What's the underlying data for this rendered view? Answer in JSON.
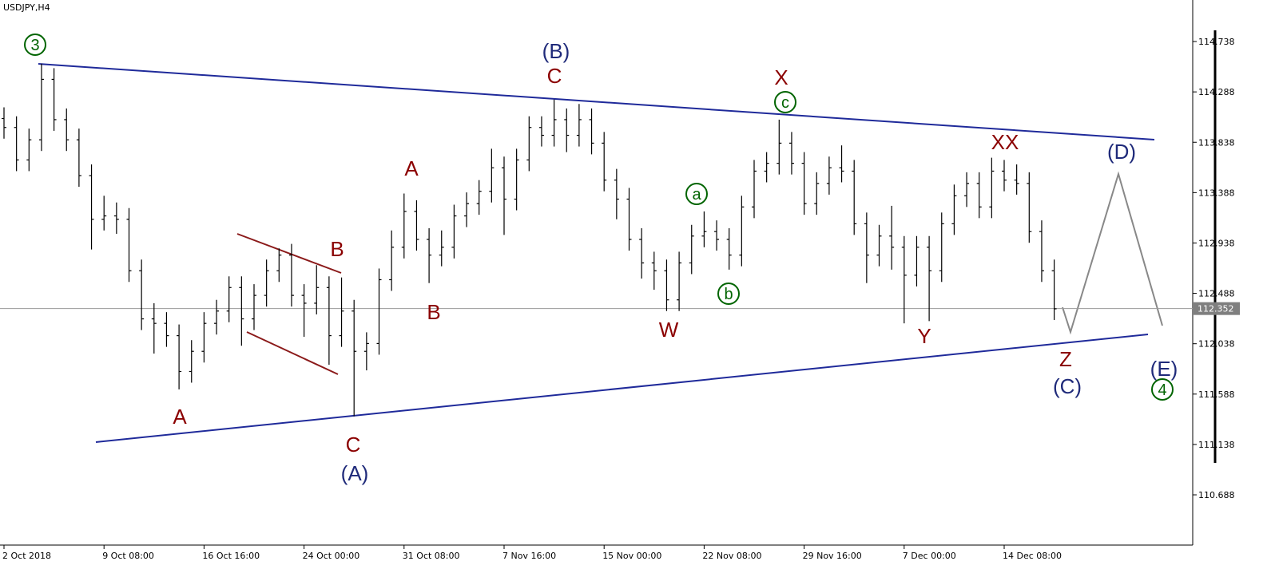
{
  "chart_data": {
    "type": "ohlc",
    "title": "USDJPY,H4",
    "categories": [
      "2 Oct 2018",
      null,
      null,
      null,
      null,
      null,
      null,
      null,
      "9 Oct 08:00",
      null,
      null,
      null,
      null,
      null,
      null,
      null,
      "16 Oct 16:00",
      null,
      null,
      null,
      null,
      null,
      null,
      null,
      "24 Oct 00:00",
      null,
      null,
      null,
      null,
      null,
      null,
      null,
      "31 Oct 08:00",
      null,
      null,
      null,
      null,
      null,
      null,
      null,
      "7 Nov 16:00",
      null,
      null,
      null,
      null,
      null,
      null,
      null,
      "15 Nov 00:00",
      null,
      null,
      null,
      null,
      null,
      null,
      null,
      "22 Nov 08:00",
      null,
      null,
      null,
      null,
      null,
      null,
      null,
      "29 Nov 16:00",
      null,
      null,
      null,
      null,
      null,
      null,
      null,
      "7 Dec 00:00",
      null,
      null,
      null,
      null,
      null,
      null,
      null,
      "14 Dec 08:00",
      null,
      null,
      null,
      null
    ],
    "open": [
      114.05,
      113.97,
      113.68,
      113.86,
      114.4,
      114.04,
      113.86,
      113.54,
      113.15,
      113.18,
      113.15,
      112.69,
      112.26,
      112.22,
      112.11,
      111.79,
      111.97,
      112.22,
      112.33,
      112.54,
      112.26,
      112.47,
      112.69,
      112.83,
      112.47,
      112.4,
      112.54,
      112.11,
      112.33,
      111.97,
      112.04,
      112.61,
      112.9,
      113.22,
      112.97,
      112.83,
      112.9,
      113.18,
      113.29,
      113.4,
      113.61,
      113.33,
      113.68,
      113.97,
      113.9,
      114.04,
      113.9,
      114.04,
      113.83,
      113.5,
      113.33,
      112.97,
      112.76,
      112.69,
      112.43,
      112.76,
      113.0,
      113.04,
      112.97,
      112.83,
      113.26,
      113.58,
      113.65,
      113.83,
      113.65,
      113.29,
      113.47,
      113.61,
      113.58,
      113.11,
      112.83,
      113.0,
      112.9,
      112.65,
      112.9,
      112.69,
      113.11,
      113.36,
      113.47,
      113.26,
      113.58,
      113.5,
      113.47,
      113.04,
      112.69
    ],
    "high": [
      114.15,
      114.07,
      113.96,
      114.54,
      114.5,
      114.14,
      113.96,
      113.64,
      113.36,
      113.3,
      113.25,
      112.79,
      112.4,
      112.32,
      112.21,
      112.07,
      112.32,
      112.43,
      112.64,
      112.64,
      112.57,
      112.79,
      112.89,
      112.93,
      112.57,
      112.74,
      112.64,
      112.63,
      112.43,
      112.14,
      112.71,
      113.05,
      113.38,
      113.32,
      113.07,
      113.05,
      113.28,
      113.39,
      113.5,
      113.78,
      113.71,
      113.78,
      114.07,
      114.07,
      114.22,
      114.14,
      114.18,
      114.14,
      113.93,
      113.6,
      113.43,
      113.07,
      112.86,
      112.79,
      112.86,
      113.1,
      113.22,
      113.14,
      113.07,
      113.36,
      113.68,
      113.75,
      114.04,
      113.93,
      113.75,
      113.57,
      113.71,
      113.81,
      113.68,
      113.21,
      113.1,
      113.27,
      113.0,
      113.0,
      113.0,
      113.21,
      113.46,
      113.57,
      113.57,
      113.7,
      113.68,
      113.64,
      113.57,
      113.14,
      112.79
    ],
    "low": [
      113.87,
      113.58,
      113.58,
      113.76,
      113.94,
      113.76,
      113.44,
      112.88,
      113.05,
      113.02,
      112.59,
      112.16,
      111.95,
      112.01,
      111.63,
      111.69,
      111.87,
      112.12,
      112.23,
      112.02,
      112.16,
      112.37,
      112.59,
      112.37,
      112.1,
      112.3,
      111.85,
      112.01,
      111.39,
      111.8,
      111.94,
      112.51,
      112.8,
      112.87,
      112.58,
      112.73,
      112.8,
      113.08,
      113.19,
      113.3,
      113.01,
      113.23,
      113.58,
      113.8,
      113.8,
      113.75,
      113.8,
      113.73,
      113.4,
      113.15,
      112.87,
      112.62,
      112.52,
      112.33,
      112.33,
      112.66,
      112.9,
      112.87,
      112.7,
      112.73,
      113.16,
      113.48,
      113.55,
      113.55,
      113.19,
      113.19,
      113.37,
      113.48,
      113.01,
      112.58,
      112.73,
      112.7,
      112.22,
      112.55,
      112.24,
      112.59,
      113.01,
      113.26,
      113.16,
      113.16,
      113.4,
      113.37,
      112.94,
      112.59,
      112.25
    ],
    "close": [
      113.97,
      113.68,
      113.86,
      114.4,
      114.04,
      113.86,
      113.54,
      113.15,
      113.18,
      113.15,
      112.69,
      112.26,
      112.22,
      112.11,
      111.79,
      111.97,
      112.22,
      112.33,
      112.54,
      112.26,
      112.47,
      112.69,
      112.83,
      112.47,
      112.4,
      112.54,
      112.11,
      112.33,
      111.97,
      112.04,
      112.61,
      112.9,
      113.22,
      112.97,
      112.83,
      112.9,
      113.18,
      113.29,
      113.4,
      113.61,
      113.33,
      113.68,
      113.97,
      113.9,
      114.04,
      113.9,
      114.04,
      113.83,
      113.5,
      113.33,
      112.97,
      112.76,
      112.69,
      112.43,
      112.76,
      113.0,
      113.04,
      112.97,
      112.83,
      113.26,
      113.58,
      113.65,
      113.83,
      113.65,
      113.29,
      113.47,
      113.61,
      113.58,
      113.11,
      112.83,
      113.0,
      112.9,
      112.65,
      112.9,
      112.69,
      113.11,
      113.36,
      113.47,
      113.26,
      113.58,
      113.5,
      113.47,
      113.04,
      112.69,
      112.35
    ],
    "color": "#000000",
    "ylim": [
      110.239,
      115.109
    ],
    "yticks": [
      114.738,
      114.288,
      113.838,
      113.388,
      112.938,
      112.488,
      112.038,
      111.588,
      111.138,
      110.688
    ],
    "last_price": 112.352,
    "annotations": [
      {
        "text": "3",
        "color": "#006400",
        "circled": true
      },
      {
        "text": "(B)",
        "color": "#1f2a7a",
        "circled": false
      },
      {
        "text": "C",
        "color": "#8b0000",
        "circled": false
      },
      {
        "text": "X",
        "color": "#8b0000",
        "circled": false
      },
      {
        "text": "c",
        "color": "#006400",
        "circled": true
      },
      {
        "text": "A",
        "color": "#8b0000",
        "circled": false
      },
      {
        "text": "a",
        "color": "#006400",
        "circled": true
      },
      {
        "text": "XX",
        "color": "#8b0000",
        "circled": false
      },
      {
        "text": "(D)",
        "color": "#1f2a7a",
        "circled": false
      },
      {
        "text": "B",
        "color": "#8b0000",
        "circled": false
      },
      {
        "text": "b",
        "color": "#006400",
        "circled": true
      },
      {
        "text": "B",
        "color": "#8b0000",
        "circled": false
      },
      {
        "text": "W",
        "color": "#8b0000",
        "circled": false
      },
      {
        "text": "Y",
        "color": "#8b0000",
        "circled": false
      },
      {
        "text": "Z",
        "color": "#8b0000",
        "circled": false
      },
      {
        "text": "(E)",
        "color": "#1f2a7a",
        "circled": false
      },
      {
        "text": "(C)",
        "color": "#1f2a7a",
        "circled": false
      },
      {
        "text": "4",
        "color": "#006400",
        "circled": true
      },
      {
        "text": "A",
        "color": "#8b0000",
        "circled": false
      },
      {
        "text": "C",
        "color": "#8b0000",
        "circled": false
      },
      {
        "text": "(A)",
        "color": "#1f2a7a",
        "circled": false
      }
    ]
  }
}
